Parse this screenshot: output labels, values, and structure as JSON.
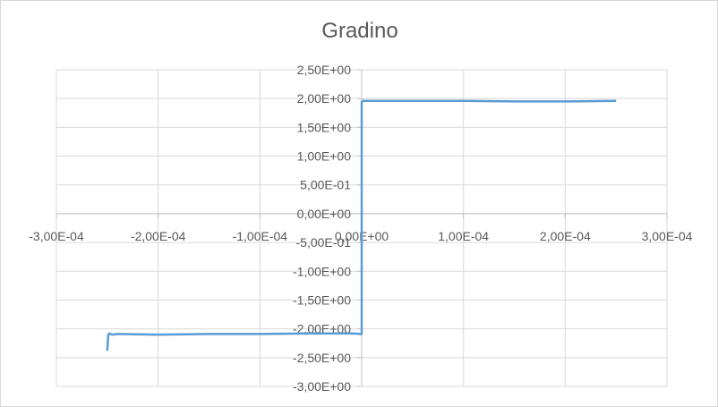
{
  "chart_data": {
    "type": "line",
    "title": "Gradino",
    "xlabel": "",
    "ylabel": "",
    "xlim": [
      -0.0003,
      0.0003
    ],
    "ylim": [
      -3.0,
      2.5
    ],
    "x_ticks": [
      -0.0003,
      -0.0002,
      -0.0001,
      0.0,
      0.0001,
      0.0002,
      0.0003
    ],
    "x_tick_labels": [
      "-3,00E-04",
      "-2,00E-04",
      "-1,00E-04",
      "0,00E+00",
      "1,00E-04",
      "2,00E-04",
      "3,00E-04"
    ],
    "y_ticks": [
      2.5,
      2.0,
      1.5,
      1.0,
      0.5,
      0.0,
      -0.5,
      -1.0,
      -1.5,
      -2.0,
      -2.5,
      -3.0
    ],
    "y_tick_labels": [
      "2,50E+00",
      "2,00E+00",
      "1,50E+00",
      "1,00E+00",
      "5,00E-01",
      "0,00E+00",
      "-5,00E-01",
      "-1,00E+00",
      "-1,50E+00",
      "-2,00E+00",
      "-2,50E+00",
      "-3,00E+00"
    ],
    "grid": true,
    "legend": "none",
    "series": [
      {
        "color": "#5b9bd5",
        "x": [
          -0.00025,
          -0.000249,
          -0.000248,
          -0.000245,
          -0.00024,
          -0.0002,
          -0.00015,
          -0.0001,
          -5e-05,
          -1e-05,
          0.0,
          0.0,
          1e-06,
          1e-05,
          5e-05,
          0.0001,
          0.00015,
          0.0002,
          0.00025
        ],
        "y": [
          -2.38,
          -2.1,
          -2.08,
          -2.1,
          -2.09,
          -2.1,
          -2.09,
          -2.09,
          -2.08,
          -2.08,
          -2.09,
          1.94,
          1.96,
          1.96,
          1.96,
          1.96,
          1.95,
          1.95,
          1.96
        ]
      }
    ]
  }
}
